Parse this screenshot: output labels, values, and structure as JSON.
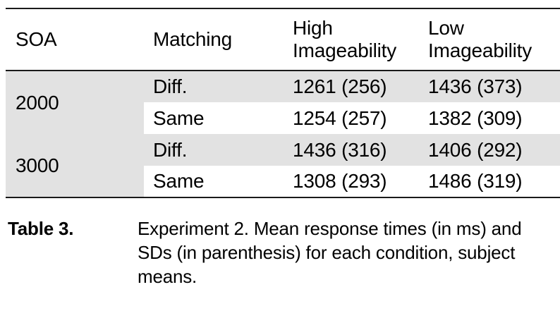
{
  "table": {
    "header": {
      "soa": "SOA",
      "matching": "Matching",
      "high_imageability": "High Imageability",
      "low_imageability": "Low Imageability"
    },
    "groups": [
      {
        "soa": "2000",
        "rows": [
          {
            "matching": "Diff.",
            "high": "1261 (256)",
            "low": "1436 (373)"
          },
          {
            "matching": "Same",
            "high": "1254 (257)",
            "low": "1382 (309)"
          }
        ]
      },
      {
        "soa": "3000",
        "rows": [
          {
            "matching": "Diff.",
            "high": "1436 (316)",
            "low": "1406 (292)"
          },
          {
            "matching": "Same",
            "high": "1308 (293)",
            "low": "1486 (319)"
          }
        ]
      }
    ]
  },
  "caption": {
    "label": "Table 3.",
    "text": "Experiment 2. Mean response times (in ms) and SDs (in parenthesis) for each condition, subject means.",
    "lines": [
      "Experiment 2. Mean response times (in ms) and",
      "SDs (in parenthesis) for each condition, subject",
      "means."
    ]
  },
  "chart_data": {
    "type": "table",
    "columns": [
      "SOA",
      "Matching",
      "High Imageability",
      "Low Imageability"
    ],
    "rows": [
      [
        "2000",
        "Diff.",
        "1261 (256)",
        "1436 (373)"
      ],
      [
        "2000",
        "Same",
        "1254 (257)",
        "1382 (309)"
      ],
      [
        "3000",
        "Diff.",
        "1436 (316)",
        "1406 (292)"
      ],
      [
        "3000",
        "Same",
        "1308 (293)",
        "1486 (319)"
      ]
    ],
    "title": "Table 3. Experiment 2. Mean response times (in ms) and SDs (in parenthesis) for each condition, subject means."
  },
  "colors": {
    "shaded_row": "#e2e2e2",
    "rule": "#1a1a1a",
    "text": "#000000",
    "background": "#ffffff"
  }
}
